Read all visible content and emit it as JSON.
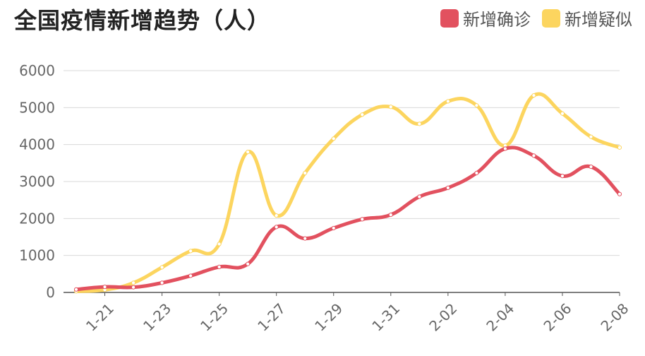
{
  "chart_data": {
    "type": "line",
    "title": "全国疫情新增趋势（人）",
    "ylim": [
      0,
      6000
    ],
    "y_ticks": [
      "0",
      "1000",
      "2000",
      "3000",
      "4000",
      "5000",
      "6000"
    ],
    "x": [
      "1-20",
      "1-21",
      "1-22",
      "1-23",
      "1-24",
      "1-25",
      "1-26",
      "1-27",
      "1-28",
      "1-29",
      "1-30",
      "1-31",
      "2-01",
      "2-02",
      "2-03",
      "2-04",
      "2-05",
      "2-06",
      "2-07",
      "2-08"
    ],
    "x_tick_labels": [
      "1-21",
      "1-23",
      "1-25",
      "1-27",
      "1-29",
      "1-31",
      "2-02",
      "2-04",
      "2-06",
      "2-08"
    ],
    "grid": true,
    "legend_position": "top-right",
    "series": [
      {
        "name": "新增确诊",
        "color": "#e2515f",
        "values": [
          80,
          150,
          140,
          260,
          450,
          690,
          770,
          1770,
          1460,
          1740,
          1980,
          2100,
          2590,
          2830,
          3230,
          3890,
          3700,
          3150,
          3400,
          2660
        ]
      },
      {
        "name": "新增疑似",
        "color": "#fcd55f",
        "values": [
          30,
          70,
          260,
          680,
          1120,
          1310,
          3800,
          2080,
          3230,
          4160,
          4810,
          5020,
          4560,
          5170,
          5060,
          3970,
          5330,
          4840,
          4210,
          3920
        ]
      }
    ]
  }
}
